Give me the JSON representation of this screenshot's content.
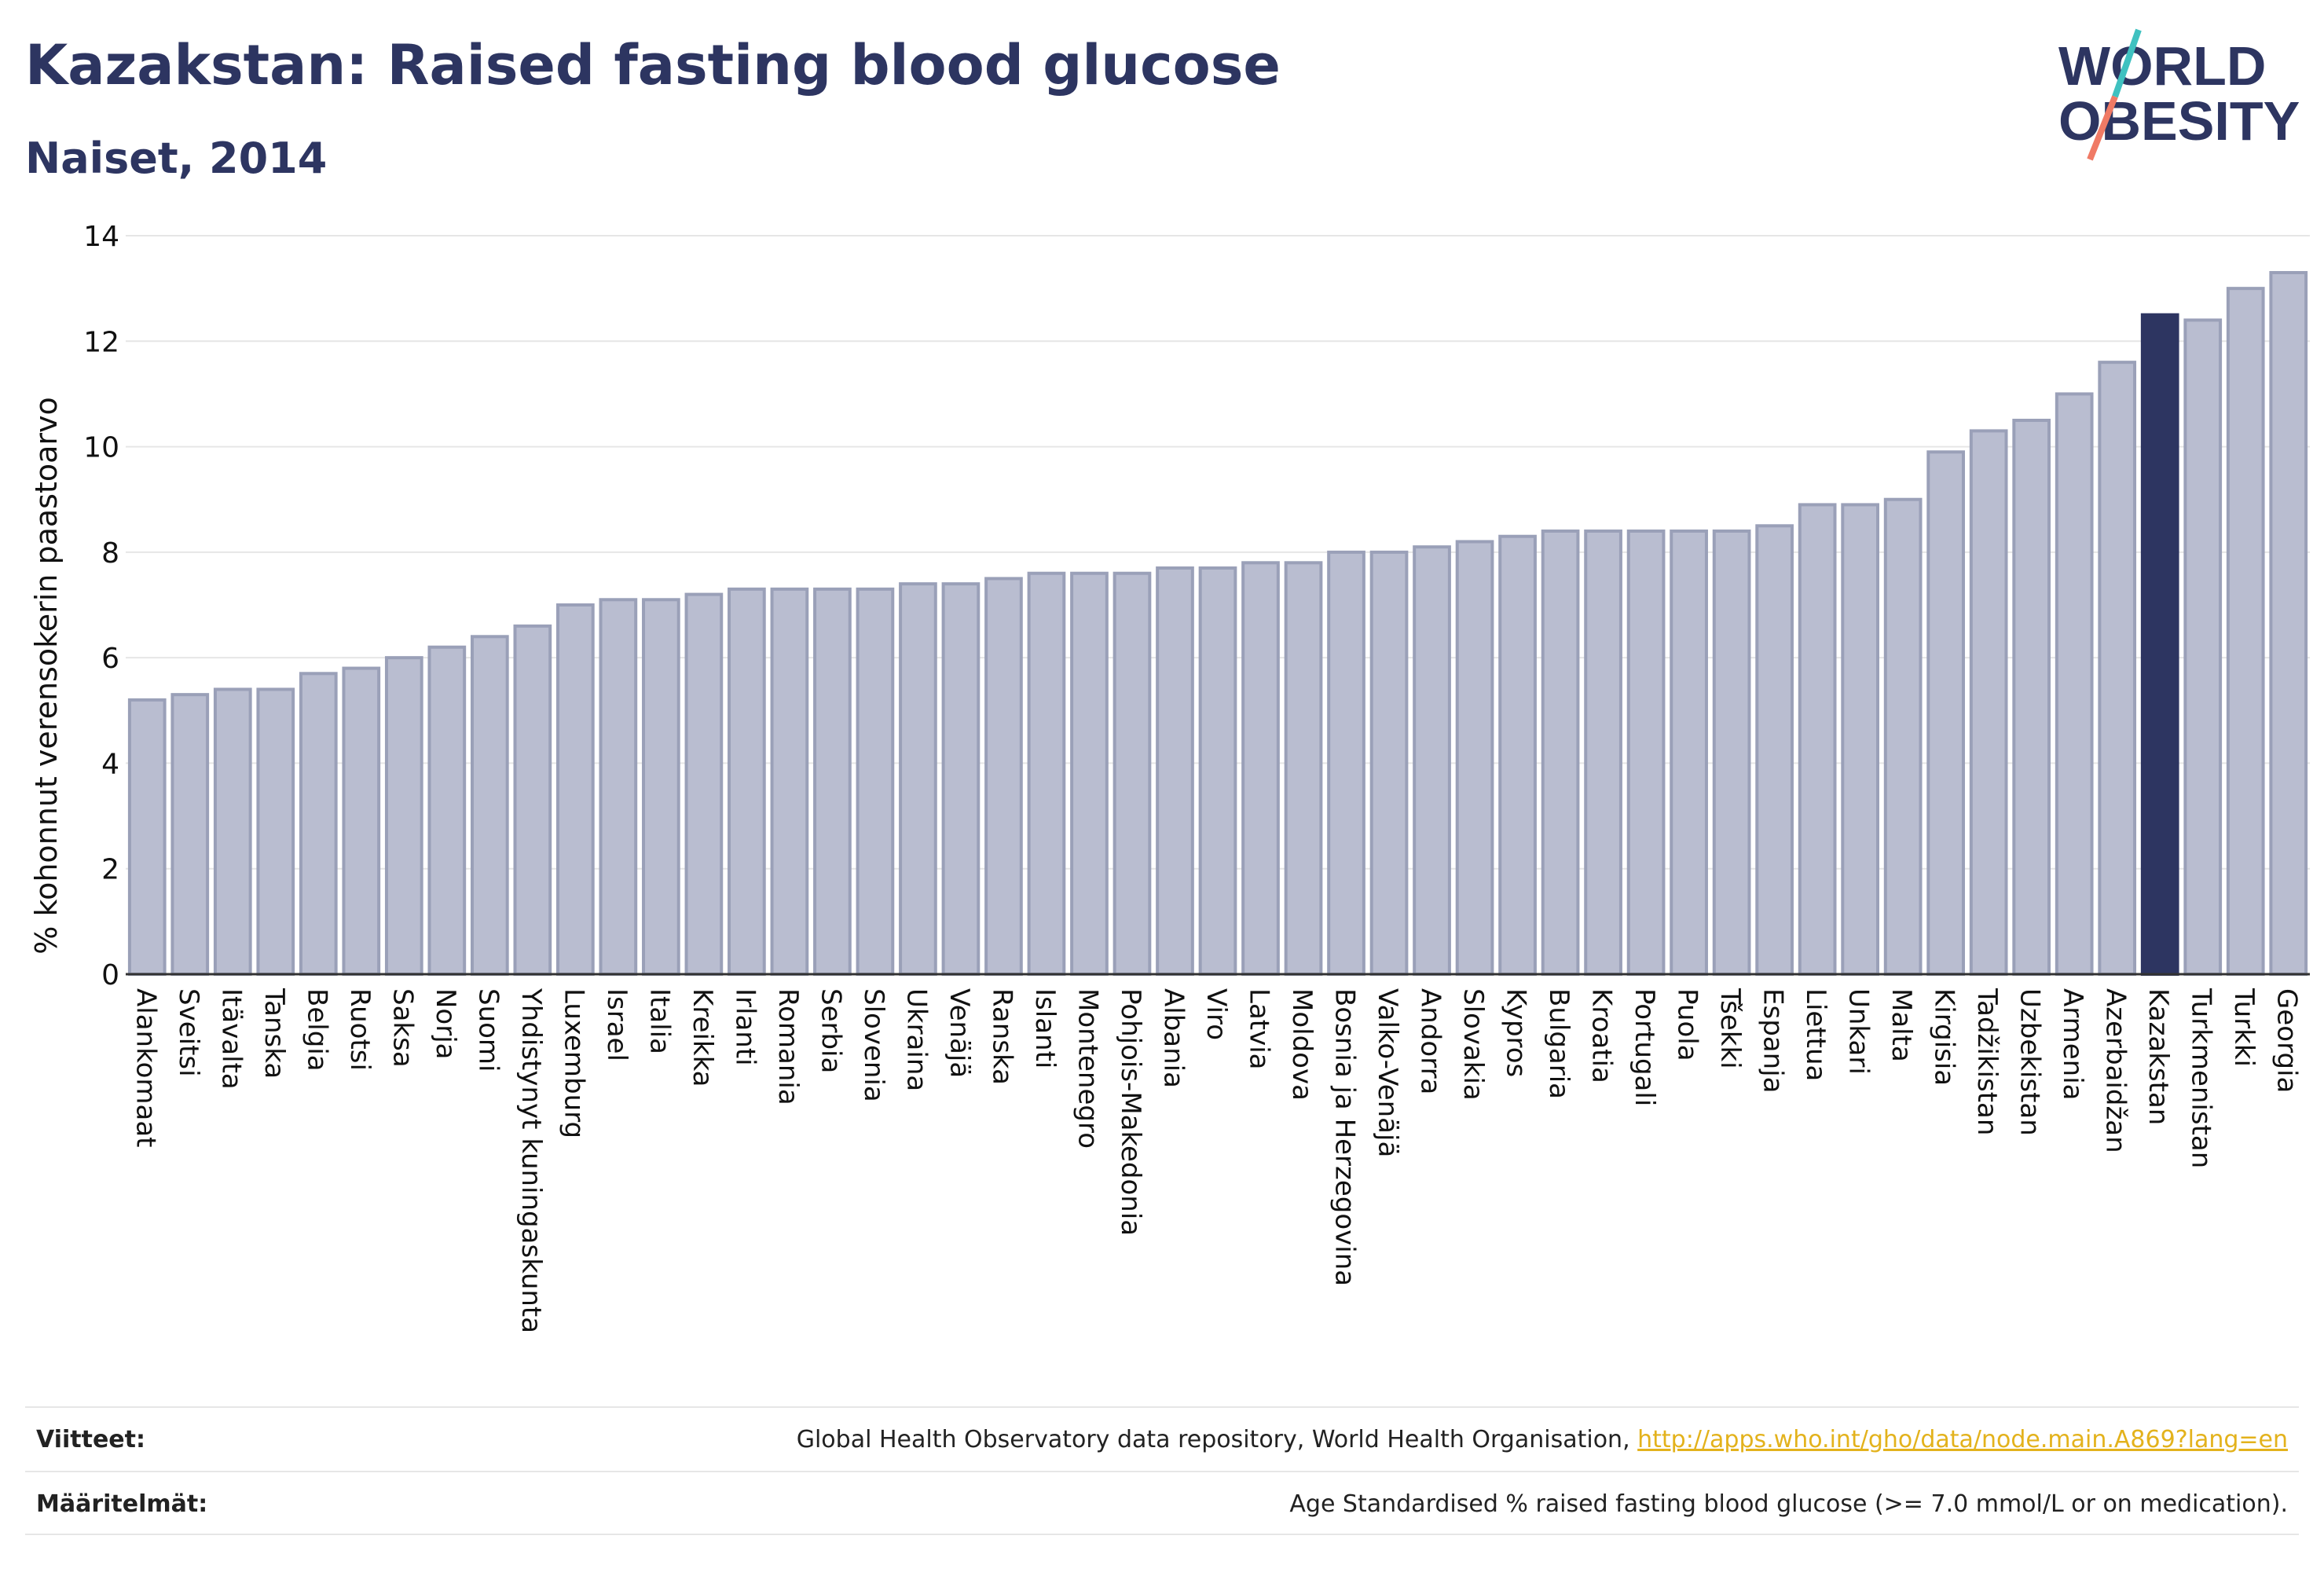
{
  "header": {
    "title": "Kazakstan: Raised fasting blood glucose",
    "subtitle": "Naiset, 2014"
  },
  "logo": {
    "line1": "WORLD",
    "line2": "OBESITY",
    "icon": "world-obesity-logo-slash"
  },
  "colors": {
    "bar": "#b9bdd0",
    "bar_stroke": "#9aa0b8",
    "highlight": "#2d3561",
    "grid": "#e6e6e6",
    "link": "#e3b21c"
  },
  "chart_data": {
    "type": "bar",
    "ylabel": "% kohonnut verensokerin paastoarvo",
    "ylim": [
      0,
      14
    ],
    "yticks": [
      0,
      2,
      4,
      6,
      8,
      10,
      12,
      14
    ],
    "grid": true,
    "highlight": "Kazakstan",
    "categories": [
      "Alankomaat",
      "Sveitsi",
      "Itävalta",
      "Tanska",
      "Belgia",
      "Ruotsi",
      "Saksa",
      "Norja",
      "Suomi",
      "Yhdistynyt kuningaskunta",
      "Luxemburg",
      "Israel",
      "Italia",
      "Kreikka",
      "Irlanti",
      "Romania",
      "Serbia",
      "Slovenia",
      "Ukraina",
      "Venäjä",
      "Ranska",
      "Islanti",
      "Montenegro",
      "Pohjois-Makedonia",
      "Albania",
      "Viro",
      "Latvia",
      "Moldova",
      "Bosnia ja Herzegovina",
      "Valko-Venäjä",
      "Andorra",
      "Slovakia",
      "Kypros",
      "Bulgaria",
      "Kroatia",
      "Portugali",
      "Puola",
      "Tšekki",
      "Espanja",
      "Liettua",
      "Unkari",
      "Malta",
      "Kirgisia",
      "Tadžikistan",
      "Uzbekistan",
      "Armenia",
      "Azerbaidžan",
      "Kazakstan",
      "Turkmenistan",
      "Turkki",
      "Georgia"
    ],
    "values": [
      5.2,
      5.3,
      5.4,
      5.4,
      5.7,
      5.8,
      6.0,
      6.2,
      6.4,
      6.6,
      7.0,
      7.1,
      7.1,
      7.2,
      7.3,
      7.3,
      7.3,
      7.3,
      7.4,
      7.4,
      7.5,
      7.6,
      7.6,
      7.6,
      7.7,
      7.7,
      7.8,
      7.8,
      8.0,
      8.0,
      8.1,
      8.2,
      8.3,
      8.4,
      8.4,
      8.4,
      8.4,
      8.4,
      8.5,
      8.9,
      8.9,
      9.0,
      9.9,
      10.3,
      10.5,
      11.0,
      11.6,
      12.5,
      12.4,
      13.0,
      13.3
    ]
  },
  "footer": {
    "refs_label": "Viitteet:",
    "refs_text": "Global Health Observatory data repository, World Health Organisation, ",
    "refs_link": "http://apps.who.int/gho/data/node.main.A869?lang=en",
    "defs_label": "Määritelmät:",
    "defs_text": "Age Standardised % raised fasting blood glucose (>= 7.0 mmol/L or on medication)."
  }
}
